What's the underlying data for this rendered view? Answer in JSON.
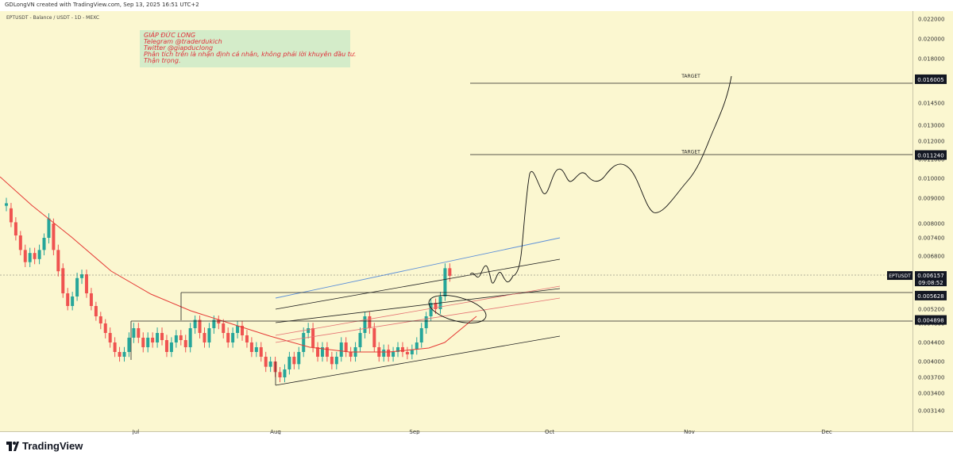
{
  "header": {
    "credit": "GDLongVN created with TradingView.com, Sep 13, 2025 16:51 UTC+2"
  },
  "symbol_info": "EPTUSDT - Balance / USDT - 1D - MEXC",
  "note": {
    "lines": [
      "GIÁP ĐỨC LONG",
      "Telegram @traderdukich",
      "Twitter @giapduclong",
      "Phân tích trên là nhận định cá nhân, không phải lời khuyên đầu tư.",
      "Thận trọng."
    ]
  },
  "footer": {
    "brand": "TradingView"
  },
  "colors": {
    "background": "#fbf7d0",
    "up": "#26a69a",
    "down": "#ef5350",
    "ma": "#e53935",
    "channel": "#222222",
    "upper_line": "#5b8fd9",
    "mid_line": "#e57373"
  },
  "chart_data": {
    "type": "candlestick",
    "series_name": "EPTUSDT",
    "last_price": "0.006157",
    "countdown": "09:08:52",
    "x_ticks": [
      "Jul",
      "Aug",
      "Sep",
      "Oct",
      "Nov",
      "Dec"
    ],
    "y_ticks": [
      "0.022000",
      "0.020000",
      "0.018000",
      "0.016000",
      "0.014500",
      "0.013000",
      "0.012000",
      "0.011000",
      "0.010000",
      "0.009000",
      "0.008000",
      "0.007400",
      "0.006800",
      "0.006200",
      "0.005700",
      "0.005200",
      "0.004800",
      "0.004400",
      "0.004000",
      "0.003700",
      "0.003400",
      "0.003140"
    ],
    "price_labels": [
      {
        "value": "0.016005",
        "kind": "target"
      },
      {
        "value": "0.011240",
        "kind": "target"
      },
      {
        "value": "0.006157",
        "kind": "symbol"
      },
      {
        "value": "0.005628",
        "kind": "level"
      },
      {
        "value": "0.004898",
        "kind": "level"
      }
    ],
    "annotations": [
      {
        "text": "TARGET",
        "price": 0.016005
      },
      {
        "text": "TARGET",
        "price": 0.01124
      }
    ],
    "horizontal_levels": [
      0.005628,
      0.004898
    ],
    "candles_note": "Daily candles from mid-June to mid-September 2025; open/close values estimated from chart",
    "candles": [
      [
        "Jun 12",
        0.0087,
        0.0088
      ],
      [
        "Jun 13",
        0.0086,
        0.00805
      ],
      [
        "Jun 14",
        0.00805,
        0.0075
      ],
      [
        "Jun 15",
        0.0075,
        0.007
      ],
      [
        "Jun 16",
        0.007,
        0.0066
      ],
      [
        "Jun 17",
        0.0066,
        0.0069
      ],
      [
        "Jun 18",
        0.0069,
        0.0067
      ],
      [
        "Jun 19",
        0.0067,
        0.007
      ],
      [
        "Jun 20",
        0.007,
        0.0074
      ],
      [
        "Jun 21",
        0.0074,
        0.0082
      ],
      [
        "Jun 22",
        0.008,
        0.007
      ],
      [
        "Jun 23",
        0.007,
        0.0063
      ],
      [
        "Jun 24",
        0.0064,
        0.0057
      ],
      [
        "Jun 25",
        0.0057,
        0.0053
      ],
      [
        "Jun 26",
        0.0053,
        0.0056
      ],
      [
        "Jun 27",
        0.0056,
        0.0061
      ],
      [
        "Jun 28",
        0.0061,
        0.0062
      ],
      [
        "Jun 29",
        0.0062,
        0.0057
      ],
      [
        "Jun 30",
        0.0057,
        0.0053
      ],
      [
        "Jul 1",
        0.0053,
        0.005
      ],
      [
        "Jul 2",
        0.005,
        0.0048
      ],
      [
        "Jul 3",
        0.0048,
        0.0046
      ],
      [
        "Jul 4",
        0.0046,
        0.0044
      ],
      [
        "Jul 5",
        0.0044,
        0.0042
      ],
      [
        "Jul 6",
        0.0042,
        0.0041
      ],
      [
        "Jul 7",
        0.0041,
        0.0042
      ],
      [
        "Jul 8",
        0.0042,
        0.0045
      ],
      [
        "Jul 9",
        0.0045,
        0.0047
      ],
      [
        "Jul 10",
        0.0047,
        0.0045
      ],
      [
        "Jul 11",
        0.0045,
        0.0043
      ],
      [
        "Jul 12",
        0.0043,
        0.0045
      ],
      [
        "Jul 13",
        0.0045,
        0.0044
      ],
      [
        "Jul 14",
        0.0044,
        0.0046
      ],
      [
        "Jul 15",
        0.0046,
        0.00445
      ],
      [
        "Jul 16",
        0.00445,
        0.0042
      ],
      [
        "Jul 17",
        0.0042,
        0.0044
      ],
      [
        "Jul 18",
        0.0044,
        0.00455
      ],
      [
        "Jul 19",
        0.00455,
        0.00445
      ],
      [
        "Jul 20",
        0.00445,
        0.0043
      ],
      [
        "Jul 21",
        0.0043,
        0.0047
      ],
      [
        "Jul 22",
        0.0047,
        0.0049
      ],
      [
        "Jul 23",
        0.0049,
        0.0046
      ],
      [
        "Jul 24",
        0.0046,
        0.0044
      ],
      [
        "Jul 25",
        0.0044,
        0.0047
      ],
      [
        "Jul 26",
        0.0047,
        0.0049
      ],
      [
        "Jul 27",
        0.0049,
        0.0048
      ],
      [
        "Jul 28",
        0.0048,
        0.0046
      ],
      [
        "Jul 29",
        0.0046,
        0.0044
      ],
      [
        "Jul 30",
        0.0044,
        0.0046
      ],
      [
        "Jul 31",
        0.0046,
        0.00475
      ],
      [
        "Aug 1",
        0.00475,
        0.00455
      ],
      [
        "Aug 2",
        0.00455,
        0.0044
      ],
      [
        "Aug 3",
        0.0044,
        0.0042
      ],
      [
        "Aug 4",
        0.0042,
        0.0043
      ],
      [
        "Aug 5",
        0.0043,
        0.0041
      ],
      [
        "Aug 6",
        0.0041,
        0.0039
      ],
      [
        "Aug 7",
        0.0039,
        0.004
      ],
      [
        "Aug 8",
        0.004,
        0.0038
      ],
      [
        "Aug 9",
        0.0038,
        0.0037
      ],
      [
        "Aug 10",
        0.0037,
        0.00385
      ],
      [
        "Aug 11",
        0.00385,
        0.0041
      ],
      [
        "Aug 12",
        0.0041,
        0.00395
      ],
      [
        "Aug 13",
        0.00395,
        0.0042
      ],
      [
        "Aug 14",
        0.0042,
        0.0046
      ],
      [
        "Aug 15",
        0.0046,
        0.0047
      ],
      [
        "Aug 16",
        0.0047,
        0.0043
      ],
      [
        "Aug 17",
        0.0043,
        0.0041
      ],
      [
        "Aug 18",
        0.0041,
        0.0043
      ],
      [
        "Aug 19",
        0.0043,
        0.0041
      ],
      [
        "Aug 20",
        0.0041,
        0.00395
      ],
      [
        "Aug 21",
        0.00395,
        0.0041
      ],
      [
        "Aug 22",
        0.0041,
        0.0044
      ],
      [
        "Aug 23",
        0.0044,
        0.0042
      ],
      [
        "Aug 24",
        0.0042,
        0.0041
      ],
      [
        "Aug 25",
        0.0041,
        0.0043
      ],
      [
        "Aug 26",
        0.0043,
        0.0046
      ],
      [
        "Aug 27",
        0.0046,
        0.005
      ],
      [
        "Aug 28",
        0.005,
        0.0047
      ],
      [
        "Aug 29",
        0.0047,
        0.0043
      ],
      [
        "Aug 30",
        0.0043,
        0.0041
      ],
      [
        "Aug 31",
        0.0041,
        0.00425
      ],
      [
        "Sep 1",
        0.00425,
        0.0041
      ],
      [
        "Sep 2",
        0.0041,
        0.0042
      ],
      [
        "Sep 3",
        0.0042,
        0.0043
      ],
      [
        "Sep 4",
        0.0043,
        0.0042
      ],
      [
        "Sep 5",
        0.0042,
        0.00415
      ],
      [
        "Sep 6",
        0.00415,
        0.00425
      ],
      [
        "Sep 7",
        0.00425,
        0.0044
      ],
      [
        "Sep 8",
        0.0044,
        0.0047
      ],
      [
        "Sep 9",
        0.0047,
        0.005
      ],
      [
        "Sep 10",
        0.005,
        0.0054
      ],
      [
        "Sep 11",
        0.0054,
        0.0052
      ],
      [
        "Sep 12",
        0.0052,
        0.0056
      ],
      [
        "Sep 13",
        0.0056,
        0.0064
      ],
      [
        "Sep 14",
        0.0064,
        0.00616
      ]
    ]
  }
}
